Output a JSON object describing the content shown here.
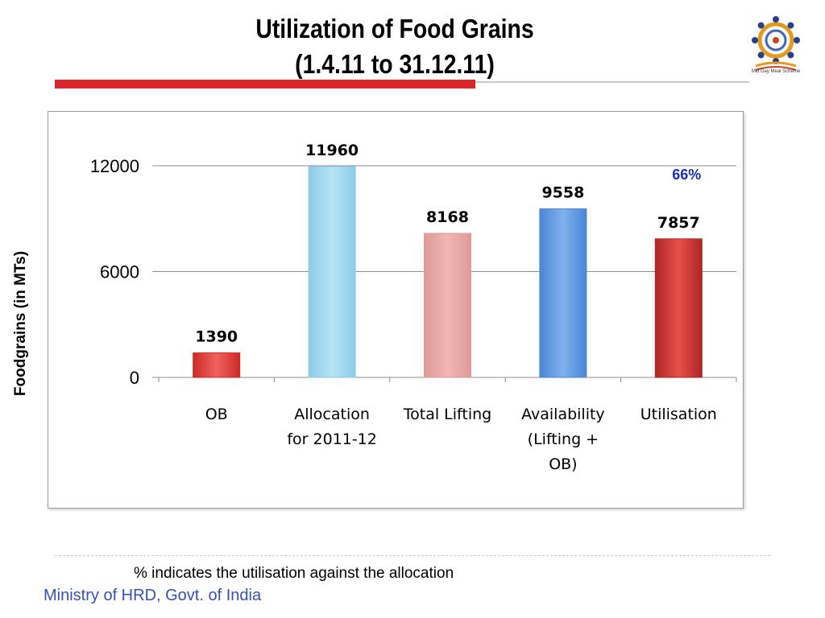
{
  "header": {
    "title_line1": "Utilization of Food Grains",
    "title_line2": "(1.4.11 to 31.12.11)",
    "logo_icon": "mid-day-meal-logo",
    "logo_text": "Mid Day Meal Scheme"
  },
  "colors": {
    "accent_red": "#d9262b",
    "footer_text": "#3a4fb4",
    "percent_text": "#1f2fb0"
  },
  "chart_data": {
    "type": "bar",
    "title": "",
    "xlabel": "",
    "ylabel": "Foodgrains (in MTs)",
    "ylim": [
      0,
      12000
    ],
    "yticks": [
      "0",
      "6000",
      "12000"
    ],
    "grid": true,
    "categories": [
      [
        "OB"
      ],
      [
        "Allocation",
        "for 2011-12"
      ],
      [
        "Total Lifting"
      ],
      [
        "Availability",
        "(Lifting +",
        "OB)"
      ],
      [
        "Utilisation"
      ]
    ],
    "values": [
      1390,
      11960,
      8168,
      9558,
      7857
    ],
    "value_labels": [
      "1390",
      "11960",
      "8168",
      "9558",
      "7857"
    ],
    "bar_colors": [
      [
        "#f06360",
        "#cc2a27"
      ],
      [
        "#b6e4f4",
        "#8cccea"
      ],
      [
        "#f2b6b4",
        "#de9a98"
      ],
      [
        "#7fb2ee",
        "#4a86d6"
      ],
      [
        "#e8504c",
        "#ad2624"
      ]
    ],
    "annotations": [
      {
        "text": "66%",
        "category_index": 4
      }
    ]
  },
  "footer": {
    "note": "% indicates the utilisation against the allocation",
    "ministry": "Ministry of HRD, Govt. of India"
  }
}
